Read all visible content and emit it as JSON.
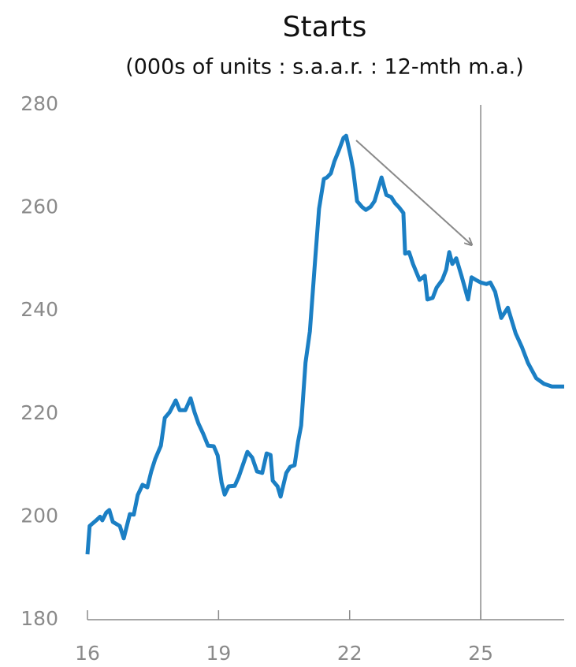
{
  "chart_data": {
    "type": "line",
    "title": "Starts",
    "subtitle": "(000s of units : s.a.a.r. : 12-mth m.a.)",
    "xlim": [
      16,
      26.91
    ],
    "xticks": [
      16,
      19,
      22,
      25
    ],
    "ylim": [
      180,
      280
    ],
    "yticks": [
      180,
      200,
      220,
      240,
      260,
      280
    ],
    "vlines": [
      25
    ],
    "series": [
      {
        "name": "Starts",
        "color": "#1b7fc4",
        "x": [
          16.0,
          16.05,
          16.2,
          16.29,
          16.34,
          16.43,
          16.5,
          16.58,
          16.74,
          16.83,
          16.97,
          17.06,
          17.15,
          17.26,
          17.37,
          17.46,
          17.55,
          17.68,
          17.77,
          17.88,
          18.02,
          18.11,
          18.24,
          18.36,
          18.45,
          18.54,
          18.65,
          18.76,
          18.89,
          18.98,
          19.07,
          19.14,
          19.23,
          19.37,
          19.46,
          19.66,
          19.77,
          19.88,
          20.0,
          20.1,
          20.19,
          20.24,
          20.35,
          20.42,
          20.55,
          20.64,
          20.74,
          20.82,
          20.89,
          20.99,
          21.09,
          21.21,
          21.3,
          21.41,
          21.48,
          21.57,
          21.65,
          21.76,
          21.86,
          21.92,
          22.03,
          22.08,
          22.17,
          22.28,
          22.37,
          22.48,
          22.57,
          22.73,
          22.84,
          22.95,
          23.04,
          23.13,
          23.23,
          23.27,
          23.36,
          23.45,
          23.6,
          23.72,
          23.78,
          23.9,
          23.99,
          24.12,
          24.21,
          24.28,
          24.35,
          24.44,
          24.57,
          24.71,
          24.79,
          24.89,
          25.0,
          25.13,
          25.22,
          25.33,
          25.47,
          25.62,
          25.8,
          25.94,
          26.08,
          26.27,
          26.45,
          26.63,
          26.91
        ],
        "values": [
          192.7,
          198.2,
          199.3,
          200,
          199.3,
          200.8,
          201.3,
          199,
          198.2,
          195.8,
          200.5,
          200.4,
          204.2,
          206.2,
          205.7,
          208.8,
          211.2,
          213.8,
          219.2,
          220.3,
          222.6,
          220.7,
          220.7,
          223,
          220.3,
          218.1,
          216.1,
          213.8,
          213.7,
          211.9,
          206.6,
          204.3,
          205.9,
          206,
          207.7,
          212.6,
          211.5,
          208.8,
          208.5,
          212.3,
          212,
          207,
          205.9,
          203.9,
          208.5,
          209.7,
          210,
          214.6,
          217.7,
          229.9,
          236,
          249.8,
          259.8,
          265.6,
          265.9,
          266.7,
          269,
          271.3,
          273.6,
          274,
          269.7,
          267.4,
          261.3,
          260.2,
          259.6,
          260.2,
          261.3,
          265.9,
          262.5,
          262.1,
          260.9,
          260.1,
          259,
          251.1,
          251.4,
          249.1,
          246,
          246.8,
          242.2,
          242.5,
          244.5,
          246,
          248,
          251.4,
          249.1,
          250.2,
          246.5,
          242.2,
          246.5,
          246,
          245.5,
          245.2,
          245.5,
          243.7,
          238.6,
          240.6,
          235.6,
          233,
          229.9,
          226.9,
          225.8,
          225.3,
          225.3
        ]
      }
    ]
  }
}
